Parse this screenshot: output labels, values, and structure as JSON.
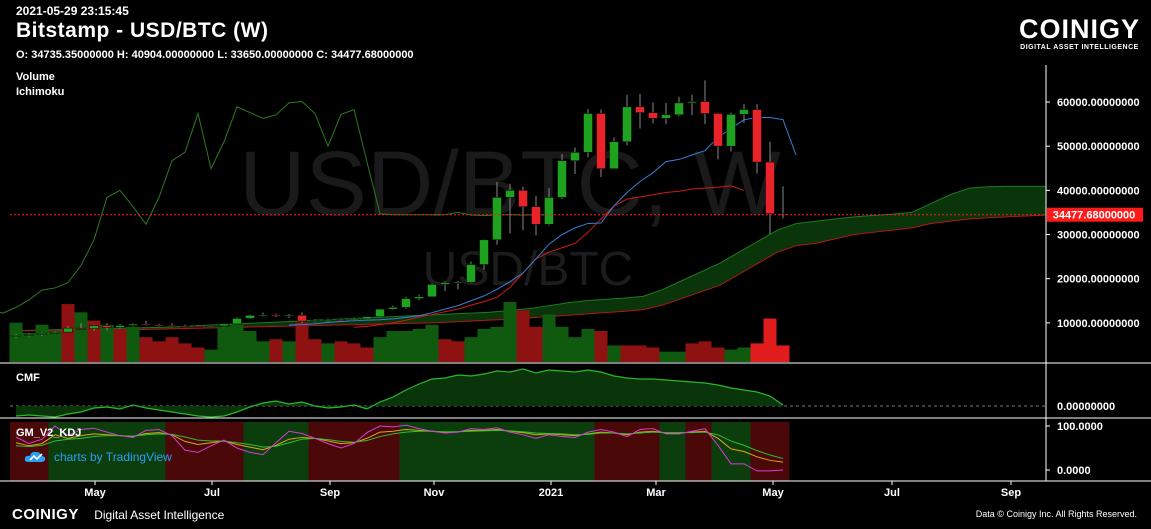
{
  "header": {
    "timestamp": "2021-05-29 23:15:45",
    "title": "Bitstamp - USD/BTC (W)",
    "ohlc": "O: 34735.35000000 H: 40904.00000000 L: 33650.00000000 C: 34477.68000000"
  },
  "brand": {
    "name": "COINIGY",
    "tagline": "DIGITAL ASSET INTELLIGENCE"
  },
  "watermark": {
    "main": "USD/BTC, W",
    "sub": "USD/BTC"
  },
  "indicators": {
    "volume": "Volume",
    "ichimoku": "Ichimoku",
    "cmf": "CMF",
    "kdj": "GM_V2_KDJ"
  },
  "tradingview": {
    "label": "charts by TradingView",
    "icon": "tradingview-cloud-icon"
  },
  "footer": {
    "brand": "COINIGY",
    "tagline": "Digital Asset Intelligence",
    "copyright": "Data © Coinigy Inc.  All Rights Reserved."
  },
  "colors": {
    "up": "#1fa21f",
    "down": "#e8242a",
    "price_line": "#ff1a1a",
    "kijun": "#d11919",
    "tenkan": "#3a7fd6",
    "lagging": "#2f7a22",
    "cloud": "#0b3a0b"
  },
  "chart_data": [
    {
      "type": "candlestick",
      "title": "Bitstamp - USD/BTC (W)",
      "x_ticks": [
        "May",
        "Jul",
        "Sep",
        "Nov",
        "2021",
        "Mar",
        "May",
        "Jul",
        "Sep"
      ],
      "y_ticks": [
        "10000.00000000",
        "20000.00000000",
        "30000.00000000",
        "40000.00000000",
        "50000.00000000",
        "60000.00000000"
      ],
      "ylim": [
        0,
        67000
      ],
      "last_price": 34477.68,
      "last_price_label": "34477.68000000",
      "candles": [
        [
          6900,
          7500,
          6550,
          7200
        ],
        [
          7200,
          7650,
          6900,
          7350
        ],
        [
          7350,
          7850,
          7000,
          7650
        ],
        [
          7650,
          8100,
          7500,
          7900
        ],
        [
          7900,
          9300,
          7800,
          8800
        ],
        [
          8800,
          9900,
          8500,
          8700
        ],
        [
          8700,
          9600,
          8200,
          9350
        ],
        [
          9350,
          9900,
          8300,
          8950
        ],
        [
          8950,
          9700,
          8700,
          9400
        ],
        [
          9400,
          9900,
          9200,
          9700
        ],
        [
          9700,
          10500,
          9300,
          9500
        ],
        [
          9500,
          9800,
          9100,
          9400
        ],
        [
          9400,
          9900,
          9000,
          9300
        ],
        [
          9300,
          9600,
          9000,
          9250
        ],
        [
          9250,
          9500,
          9050,
          9150
        ],
        [
          9150,
          9400,
          9000,
          9300
        ],
        [
          9300,
          9900,
          9200,
          9750
        ],
        [
          9750,
          11200,
          9700,
          11000
        ],
        [
          11000,
          11900,
          10900,
          11700
        ],
        [
          11700,
          12300,
          11400,
          11800
        ],
        [
          11800,
          12100,
          11300,
          11600
        ],
        [
          11600,
          12000,
          11100,
          11700
        ],
        [
          11700,
          12400,
          9900,
          10400
        ],
        [
          10400,
          10800,
          10100,
          10500
        ],
        [
          10500,
          11000,
          10200,
          10700
        ],
        [
          10700,
          10900,
          10400,
          10650
        ],
        [
          10650,
          11200,
          10500,
          10900
        ],
        [
          10900,
          11500,
          10800,
          11400
        ],
        [
          11400,
          13200,
          11200,
          13100
        ],
        [
          13100,
          13900,
          12900,
          13500
        ],
        [
          13500,
          15900,
          13200,
          15500
        ],
        [
          15500,
          16400,
          15100,
          15900
        ],
        [
          15900,
          18900,
          15800,
          18700
        ],
        [
          18700,
          19400,
          17200,
          19100
        ],
        [
          19100,
          19500,
          17600,
          19200
        ],
        [
          19200,
          23900,
          19000,
          23200
        ],
        [
          23200,
          28900,
          22000,
          28800
        ],
        [
          28800,
          41900,
          27700,
          38400
        ],
        [
          38400,
          41500,
          30200,
          40000
        ],
        [
          40000,
          40800,
          31000,
          36300
        ],
        [
          36300,
          38700,
          29800,
          32300
        ],
        [
          32300,
          40500,
          32000,
          38400
        ],
        [
          38400,
          48200,
          38000,
          46700
        ],
        [
          46700,
          49700,
          43700,
          48600
        ],
        [
          48600,
          58400,
          47500,
          57400
        ],
        [
          57400,
          58300,
          43000,
          44900
        ],
        [
          44900,
          52000,
          44900,
          51000
        ],
        [
          51000,
          61600,
          50200,
          58900
        ],
        [
          58900,
          61800,
          54000,
          57600
        ],
        [
          57600,
          59900,
          55200,
          56300
        ],
        [
          56300,
          59800,
          55000,
          57100
        ],
        [
          57100,
          61200,
          56800,
          59800
        ],
        [
          59800,
          61700,
          57000,
          60100
        ],
        [
          60100,
          64900,
          55000,
          57400
        ],
        [
          57400,
          57600,
          47000,
          50000
        ],
        [
          50000,
          57600,
          48800,
          57200
        ],
        [
          57200,
          59500,
          55300,
          58300
        ],
        [
          58300,
          59500,
          43800,
          46400
        ],
        [
          46400,
          51000,
          30100,
          34700
        ],
        [
          34700,
          40900,
          33650,
          34478
        ]
      ],
      "tenkan": {
        "start": 21,
        "values": [
          9500,
          9600,
          9800,
          10100,
          10300,
          10500,
          10600,
          10700,
          10900,
          11200,
          11600,
          12300,
          13100,
          13900,
          15000,
          16100,
          17600,
          19300,
          21300,
          24500,
          27800,
          30000,
          31500,
          32500,
          32600,
          36500,
          39500,
          42000,
          44000,
          46500,
          47000,
          48000,
          49000,
          52000,
          54000,
          56000,
          56500,
          56500,
          56000,
          48000
        ]
      },
      "kijun": {
        "start": 26,
        "values": [
          9000,
          9200,
          9600,
          10000,
          10600,
          11300,
          11900,
          12500,
          13100,
          14000,
          14800,
          15800,
          18000,
          21300,
          24500,
          26000,
          27000,
          28000,
          30500,
          33500,
          36500,
          38000,
          38500,
          39000,
          39500,
          39800,
          40300,
          40500,
          40700,
          41000,
          40000
        ]
      },
      "lagging": {
        "values": [
          13000,
          12200,
          13500,
          15200,
          17400,
          17900,
          19100,
          23000,
          28800,
          38400,
          40000,
          36300,
          32300,
          38400,
          46700,
          48600,
          57400,
          44900,
          51000,
          58900,
          57600,
          56300,
          57100,
          59800,
          60100,
          57400,
          50000,
          57200,
          58300,
          46400,
          34700,
          34478,
          34478,
          34478,
          34478,
          34478,
          35000,
          34400,
          34300,
          34400,
          34500,
          34400,
          34478,
          34478
        ]
      },
      "cloud": {
        "span_a": [
          8200,
          8300,
          8400,
          8500,
          8600,
          8700,
          8800,
          8900,
          9000,
          9200,
          9400,
          9600,
          9800,
          10000,
          10200,
          10400,
          10600,
          10800,
          11000,
          11200,
          11400,
          11600,
          11800,
          12000,
          12200,
          12400,
          12800,
          13200,
          13800,
          14500,
          15000,
          15300,
          15600,
          16000,
          17500,
          19500,
          21500,
          23500,
          26000,
          28500,
          31000,
          32500,
          33000,
          33500,
          34000,
          34300,
          34600,
          35000,
          37000,
          39000,
          40500,
          40800,
          40900,
          40900,
          40900
        ],
        "span_b": [
          8200,
          8200,
          8300,
          8300,
          8400,
          8400,
          8500,
          8500,
          8600,
          8700,
          8800,
          8900,
          9000,
          9100,
          9200,
          9300,
          9400,
          9500,
          9600,
          9700,
          9800,
          9900,
          10000,
          10200,
          10400,
          10600,
          10800,
          11100,
          11400,
          11700,
          12000,
          12300,
          12600,
          13000,
          14000,
          15500,
          17000,
          18500,
          21000,
          23500,
          26000,
          27500,
          28000,
          29000,
          30000,
          30500,
          31000,
          31500,
          32500,
          33000,
          33500,
          33800,
          34000,
          34200,
          34400
        ]
      },
      "volume": [
        [
          9500,
          "up"
        ],
        [
          7000,
          "up"
        ],
        [
          9000,
          "up"
        ],
        [
          7500,
          "up"
        ],
        [
          14000,
          "down"
        ],
        [
          12000,
          "up"
        ],
        [
          10000,
          "down"
        ],
        [
          9000,
          "up"
        ],
        [
          8000,
          "down"
        ],
        [
          8500,
          "up"
        ],
        [
          6000,
          "down"
        ],
        [
          5000,
          "down"
        ],
        [
          6000,
          "down"
        ],
        [
          4500,
          "down"
        ],
        [
          3500,
          "down"
        ],
        [
          3000,
          "up"
        ],
        [
          8500,
          "up"
        ],
        [
          9000,
          "up"
        ],
        [
          7500,
          "up"
        ],
        [
          5000,
          "up"
        ],
        [
          5500,
          "down"
        ],
        [
          5000,
          "up"
        ],
        [
          9500,
          "down"
        ],
        [
          5500,
          "down"
        ],
        [
          4500,
          "up"
        ],
        [
          5000,
          "down"
        ],
        [
          4500,
          "down"
        ],
        [
          3500,
          "down"
        ],
        [
          6000,
          "up"
        ],
        [
          7500,
          "up"
        ],
        [
          7500,
          "up"
        ],
        [
          8000,
          "up"
        ],
        [
          9000,
          "up"
        ],
        [
          5500,
          "down"
        ],
        [
          5000,
          "down"
        ],
        [
          6000,
          "up"
        ],
        [
          8000,
          "up"
        ],
        [
          8500,
          "up"
        ],
        [
          14500,
          "up"
        ],
        [
          12500,
          "down"
        ],
        [
          8500,
          "down"
        ],
        [
          11500,
          "up"
        ],
        [
          8500,
          "up"
        ],
        [
          6000,
          "up"
        ],
        [
          8000,
          "up"
        ],
        [
          7500,
          "down"
        ],
        [
          4000,
          "up"
        ],
        [
          4000,
          "down"
        ],
        [
          4000,
          "down"
        ],
        [
          3500,
          "down"
        ],
        [
          2500,
          "up"
        ],
        [
          2500,
          "up"
        ],
        [
          4500,
          "down"
        ],
        [
          5000,
          "down"
        ],
        [
          3500,
          "down"
        ],
        [
          3000,
          "up"
        ],
        [
          3500,
          "up"
        ],
        [
          4500,
          "down"
        ],
        [
          10500,
          "down"
        ],
        [
          4000,
          "down"
        ]
      ]
    },
    {
      "type": "line",
      "title": "CMF",
      "y_ticks": [
        "0.00000000"
      ],
      "ylim": [
        -0.25,
        0.45
      ],
      "values": [
        -0.1,
        -0.09,
        -0.1,
        -0.11,
        -0.08,
        -0.06,
        -0.02,
        -0.01,
        -0.03,
        0.01,
        -0.02,
        -0.04,
        -0.06,
        -0.08,
        -0.1,
        -0.11,
        -0.1,
        -0.06,
        -0.01,
        0.03,
        0.05,
        0.02,
        0.04,
        0.0,
        -0.02,
        -0.01,
        0.01,
        -0.03,
        0.04,
        0.09,
        0.16,
        0.22,
        0.27,
        0.28,
        0.31,
        0.3,
        0.32,
        0.35,
        0.34,
        0.37,
        0.33,
        0.36,
        0.35,
        0.34,
        0.36,
        0.34,
        0.3,
        0.28,
        0.27,
        0.27,
        0.26,
        0.25,
        0.24,
        0.23,
        0.21,
        0.18,
        0.16,
        0.14,
        0.1,
        0.01
      ]
    },
    {
      "type": "line",
      "title": "GM_V2_KDJ",
      "y_ticks": [
        "100.0000",
        "0.0000"
      ],
      "ylim": [
        -20,
        115
      ],
      "k": [
        62,
        55,
        60,
        80,
        72,
        78,
        82,
        80,
        78,
        76,
        83,
        85,
        80,
        65,
        58,
        62,
        66,
        58,
        52,
        46,
        56,
        70,
        74,
        72,
        66,
        60,
        62,
        72,
        86,
        88,
        92,
        90,
        88,
        86,
        87,
        90,
        90,
        92,
        88,
        85,
        80,
        82,
        80,
        78,
        82,
        86,
        84,
        80,
        86,
        88,
        84,
        84,
        86,
        88,
        72,
        48,
        42,
        30,
        22,
        18
      ],
      "d": [
        55,
        53,
        56,
        66,
        70,
        72,
        76,
        78,
        78,
        77,
        80,
        82,
        81,
        75,
        68,
        66,
        66,
        62,
        58,
        52,
        54,
        62,
        70,
        72,
        69,
        65,
        63,
        67,
        76,
        82,
        86,
        88,
        88,
        87,
        87,
        88,
        89,
        90,
        89,
        87,
        84,
        83,
        82,
        80,
        81,
        84,
        84,
        82,
        84,
        86,
        85,
        85,
        85,
        86,
        80,
        66,
        56,
        44,
        34,
        26
      ],
      "j": [
        75,
        60,
        70,
        100,
        78,
        92,
        95,
        86,
        78,
        74,
        90,
        92,
        78,
        45,
        40,
        55,
        68,
        50,
        40,
        35,
        62,
        88,
        83,
        72,
        60,
        50,
        60,
        85,
        100,
        98,
        102,
        94,
        88,
        84,
        86,
        94,
        92,
        96,
        86,
        80,
        72,
        80,
        76,
        74,
        86,
        92,
        86,
        76,
        92,
        94,
        82,
        82,
        88,
        94,
        56,
        14,
        14,
        -2,
        -2,
        0
      ],
      "background_bands": [
        [
          0,
          3,
          "down"
        ],
        [
          3,
          12,
          "up"
        ],
        [
          12,
          18,
          "down"
        ],
        [
          18,
          23,
          "up"
        ],
        [
          23,
          30,
          "down"
        ],
        [
          30,
          45,
          "up"
        ],
        [
          45,
          50,
          "down"
        ],
        [
          50,
          52,
          "up"
        ],
        [
          52,
          54,
          "down"
        ],
        [
          54,
          57,
          "up"
        ],
        [
          57,
          60,
          "down"
        ]
      ]
    }
  ]
}
